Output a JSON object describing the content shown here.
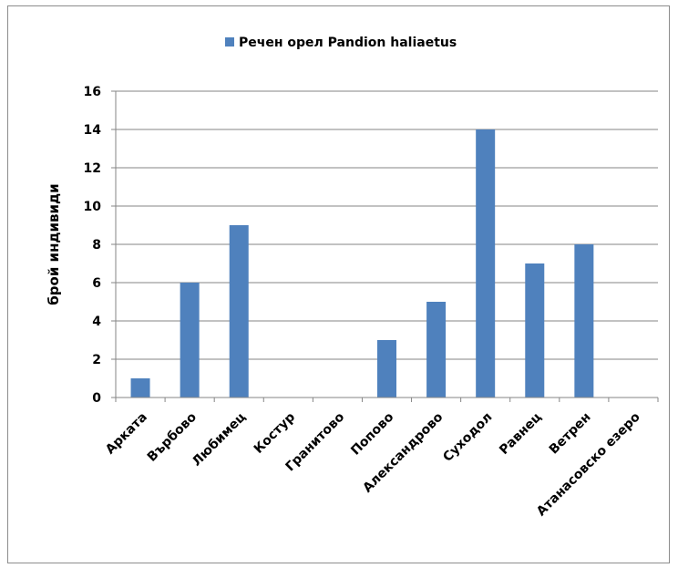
{
  "chart_data": {
    "type": "bar",
    "categories": [
      "Арката",
      "Върбово",
      "Любимец",
      "Костур",
      "Гранитово",
      "Попово",
      "Александрово",
      "Суходол",
      "Равнец",
      "Ветрен",
      "Атанасовско езеро"
    ],
    "series": [
      {
        "name": "Речен орел Pandion haliaetus",
        "values": [
          1,
          6,
          9,
          0,
          0,
          3,
          5,
          14,
          7,
          8,
          0
        ],
        "color": "#4f81bd"
      }
    ],
    "title": "",
    "xlabel": "",
    "ylabel": "брой индивиди",
    "ylim": [
      0,
      16
    ],
    "yticks": [
      0,
      2,
      4,
      6,
      8,
      10,
      12,
      14,
      16
    ],
    "grid": true,
    "legend_position": "top",
    "gridline_color": "#868686"
  }
}
